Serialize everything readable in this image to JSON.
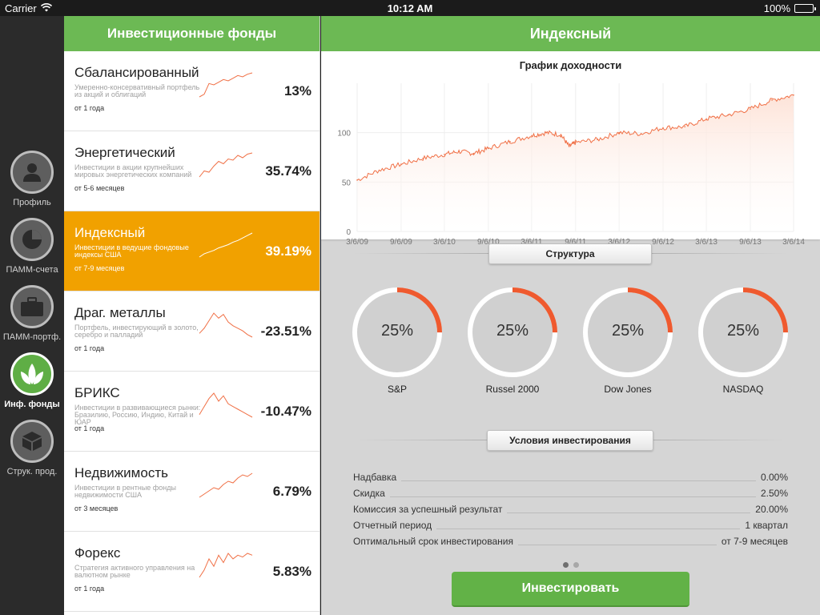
{
  "status_bar": {
    "carrier": "Carrier",
    "time": "10:12 AM",
    "battery": "100%"
  },
  "sidebar": {
    "items": [
      {
        "label": "Профиль",
        "icon": "person-icon",
        "active": false
      },
      {
        "label": "ПАММ-счета",
        "icon": "pie-chart-icon",
        "active": false
      },
      {
        "label": "ПАММ-портф.",
        "icon": "briefcase-icon",
        "active": false
      },
      {
        "label": "Инф. фонды",
        "icon": "leaves-icon",
        "active": true
      },
      {
        "label": "Струк. прод.",
        "icon": "blocks-icon",
        "active": false
      }
    ]
  },
  "funds_panel": {
    "title": "Инвестиционные фонды",
    "funds": [
      {
        "name": "Сбалансированный",
        "description": "Умеренно-консервативный портфель из акций и облигаций",
        "term": "от 1 года",
        "return": "13%",
        "active": false,
        "spark": [
          20,
          22,
          30,
          29,
          31,
          33,
          32,
          34,
          36,
          35,
          37,
          38
        ]
      },
      {
        "name": "Энергетический",
        "description": "Инвестиции в акции крупнейших мировых энергетических компаний",
        "term": "от 5-6 месяцев",
        "return": "35.74%",
        "active": false,
        "spark": [
          15,
          20,
          19,
          24,
          28,
          26,
          30,
          29,
          33,
          31,
          34,
          35
        ]
      },
      {
        "name": "Индексный",
        "description": "Инвестиции в ведущие фондовые индексы США",
        "term": "от 7-9 месяцев",
        "return": "39.19%",
        "active": true,
        "spark": [
          10,
          14,
          16,
          18,
          21,
          23,
          25,
          28,
          30,
          33,
          36,
          39
        ]
      },
      {
        "name": "Драг. металлы",
        "description": "Портфель, инвестирующий в золото, серебро и палладий",
        "term": "от 1 года",
        "return": "-23.51%",
        "active": false,
        "spark": [
          18,
          22,
          28,
          34,
          30,
          33,
          27,
          24,
          22,
          20,
          17,
          15
        ]
      },
      {
        "name": "БРИКС",
        "description": "Инвестиции в развивающиеся рынки: Бразилию, Россию, Индию, Китай и ЮАР",
        "term": "от 1 года",
        "return": "-10.47%",
        "active": false,
        "spark": [
          24,
          27,
          30,
          32,
          29,
          31,
          28,
          27,
          26,
          25,
          24,
          23
        ]
      },
      {
        "name": "Недвижимость",
        "description": "Инвестиции в рентные фонды недвижимости США",
        "term": "от 3 месяцев",
        "return": "6.79%",
        "active": false,
        "spark": [
          16,
          18,
          20,
          22,
          21,
          24,
          26,
          25,
          28,
          30,
          29,
          31
        ]
      },
      {
        "name": "Форекс",
        "description": "Стратегия активного управления на валютном рынке",
        "term": "от 1 года",
        "return": "5.83%",
        "active": false,
        "spark": [
          14,
          18,
          24,
          20,
          26,
          22,
          27,
          24,
          26,
          25,
          27,
          26
        ]
      }
    ]
  },
  "detail": {
    "title": "Индексный",
    "structure_label": "Структура",
    "conditions_label": "Условия инвестирования",
    "allocation": [
      {
        "name": "S&P",
        "value": "25%",
        "fraction": 0.25
      },
      {
        "name": "Russel 2000",
        "value": "25%",
        "fraction": 0.25
      },
      {
        "name": "Dow Jones",
        "value": "25%",
        "fraction": 0.25
      },
      {
        "name": "NASDAQ",
        "value": "25%",
        "fraction": 0.25
      }
    ],
    "conditions": [
      {
        "label": "Надбавка",
        "value": "0.00%"
      },
      {
        "label": "Скидка",
        "value": "2.50%"
      },
      {
        "label": "Комиссия за успешный результат",
        "value": "20.00%"
      },
      {
        "label": "Отчетный период",
        "value": "1 квартал"
      },
      {
        "label": "Оптимальный срок инвестирования",
        "value": "от 7-9 месяцев"
      }
    ],
    "pager": {
      "pages": 2,
      "current": 1
    },
    "invest_button": "Инвестировать"
  },
  "chart_data": {
    "type": "area",
    "title": "График доходности",
    "x_tick_labels": [
      "3/6/09",
      "9/6/09",
      "3/6/10",
      "9/6/10",
      "3/6/11",
      "9/6/11",
      "3/6/12",
      "9/6/12",
      "3/6/13",
      "9/6/13",
      "3/6/14"
    ],
    "y_ticks": [
      0,
      50,
      100
    ],
    "ylim": [
      0,
      150
    ],
    "x": [
      "3/6/09",
      "6/6/09",
      "9/6/09",
      "12/6/09",
      "3/6/10",
      "5/6/10",
      "7/6/10",
      "9/6/10",
      "12/6/10",
      "3/6/11",
      "5/6/11",
      "7/6/11",
      "8/10/11",
      "9/6/11",
      "12/6/11",
      "3/6/12",
      "6/6/12",
      "9/6/12",
      "12/6/12",
      "3/6/13",
      "6/6/13",
      "9/6/13",
      "12/6/13",
      "3/6/14"
    ],
    "values": [
      52,
      62,
      68,
      74,
      78,
      81,
      79,
      84,
      91,
      97,
      100,
      98,
      86,
      90,
      93,
      100,
      99,
      105,
      106,
      114,
      118,
      124,
      133,
      138
    ],
    "line_color": "#f07046",
    "fill_color": "#fde3d8"
  },
  "colors": {
    "header_green": "#6cb954",
    "active_orange": "#f1a100",
    "ring_accent": "#ef5a2f",
    "button_green": "#62b247"
  }
}
